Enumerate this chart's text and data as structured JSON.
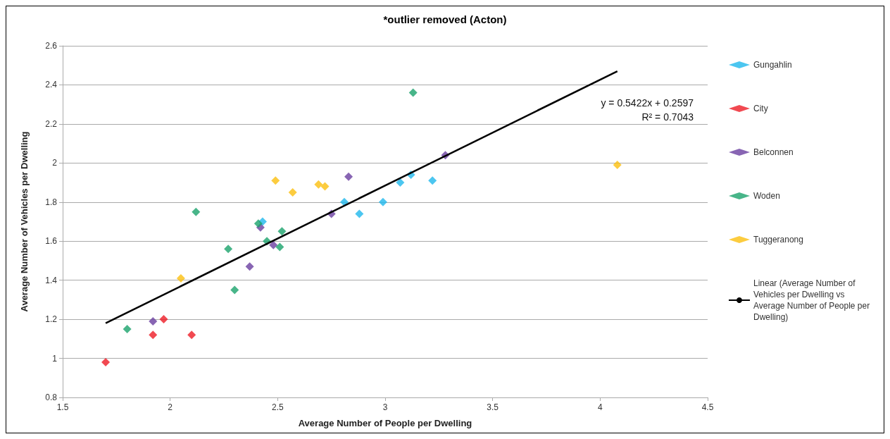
{
  "chart_data": {
    "type": "scatter",
    "title": "*outlier removed (Acton)",
    "xlabel": "Average Number of People per Dwelling",
    "ylabel": "Average Number of Vehicles per Dwelling",
    "xlim": [
      1.5,
      4.5
    ],
    "xticks": [
      1.5,
      2,
      2.5,
      3,
      3.5,
      4,
      4.5
    ],
    "ylim": [
      0.8,
      2.6
    ],
    "yticks": [
      0.8,
      1,
      1.2,
      1.4,
      1.6,
      1.8,
      2,
      2.2,
      2.4,
      2.6
    ],
    "grid": "y",
    "legend": "right",
    "marker": "diamond",
    "annotations": [
      "y = 0.5422x + 0.2597",
      "R² = 0.7043"
    ],
    "series": [
      {
        "name": "Gungahlin",
        "color": "#1fb8ec",
        "x": [
          2.43,
          2.81,
          2.88,
          2.99,
          3.07,
          3.12,
          3.22
        ],
        "values": [
          1.7,
          1.8,
          1.74,
          1.8,
          1.9,
          1.94,
          1.91
        ]
      },
      {
        "name": "City",
        "color": "#ee1c25",
        "x": [
          1.7,
          1.92,
          1.97,
          2.1
        ],
        "values": [
          0.98,
          1.12,
          1.2,
          1.12
        ]
      },
      {
        "name": "Belconnen",
        "color": "#6a3fa0",
        "x": [
          1.92,
          2.37,
          2.42,
          2.48,
          2.75,
          2.83,
          3.28
        ],
        "values": [
          1.19,
          1.47,
          1.67,
          1.58,
          1.74,
          1.93,
          2.04
        ]
      },
      {
        "name": "Woden",
        "color": "#1aa36b",
        "x": [
          1.8,
          2.12,
          2.27,
          2.3,
          2.41,
          2.45,
          2.51,
          2.52,
          3.13
        ],
        "values": [
          1.15,
          1.75,
          1.56,
          1.35,
          1.69,
          1.6,
          1.57,
          1.65,
          2.36
        ]
      },
      {
        "name": "Tuggeranong",
        "color": "#fbbf0f",
        "x": [
          2.05,
          2.49,
          2.57,
          2.69,
          2.72,
          4.08
        ],
        "values": [
          1.41,
          1.91,
          1.85,
          1.89,
          1.88,
          1.99
        ]
      },
      {
        "name": "Linear (Average Number of Vehicles per Dwelling vs Average Number of People per Dwelling)",
        "type": "line",
        "color": "#000000",
        "marker": "none",
        "x": [
          1.7,
          4.08
        ],
        "values": [
          1.18,
          2.47
        ]
      }
    ]
  }
}
